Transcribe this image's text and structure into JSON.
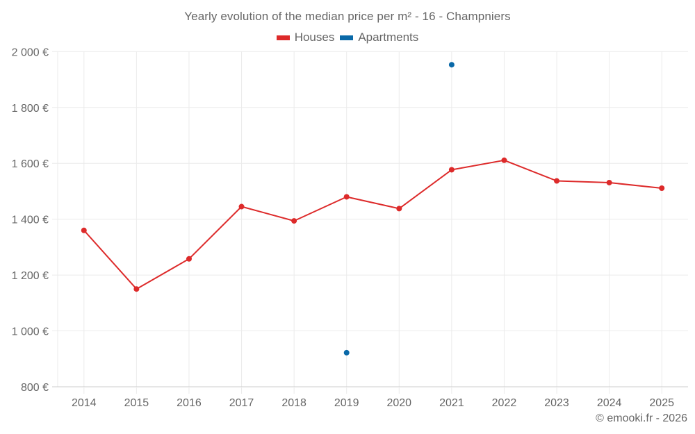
{
  "chart_data": {
    "type": "line",
    "title": "Yearly evolution of the median price per m² - 16 - Champniers",
    "xlabel": "",
    "ylabel": "",
    "categories": [
      "2014",
      "2015",
      "2016",
      "2017",
      "2018",
      "2019",
      "2020",
      "2021",
      "2022",
      "2023",
      "2024",
      "2025"
    ],
    "ylim": [
      800,
      2000
    ],
    "yticks": [
      800,
      1000,
      1200,
      1400,
      1600,
      1800,
      2000
    ],
    "ytick_labels": [
      "800 €",
      "1 000 €",
      "1 200 €",
      "1 400 €",
      "1 600 €",
      "1 800 €",
      "2 000 €"
    ],
    "grid": true,
    "legend_position": "top-center",
    "series": [
      {
        "name": "Houses",
        "color": "#dd2a2a",
        "values": [
          1360,
          1150,
          1258,
          1445,
          1394,
          1480,
          1438,
          1577,
          1611,
          1537,
          1531,
          1511
        ]
      },
      {
        "name": "Apartments",
        "color": "#0a69a8",
        "values": [
          null,
          null,
          null,
          null,
          null,
          922,
          null,
          1953,
          null,
          null,
          null,
          null
        ]
      }
    ]
  },
  "credit": "© emooki.fr - 2026"
}
